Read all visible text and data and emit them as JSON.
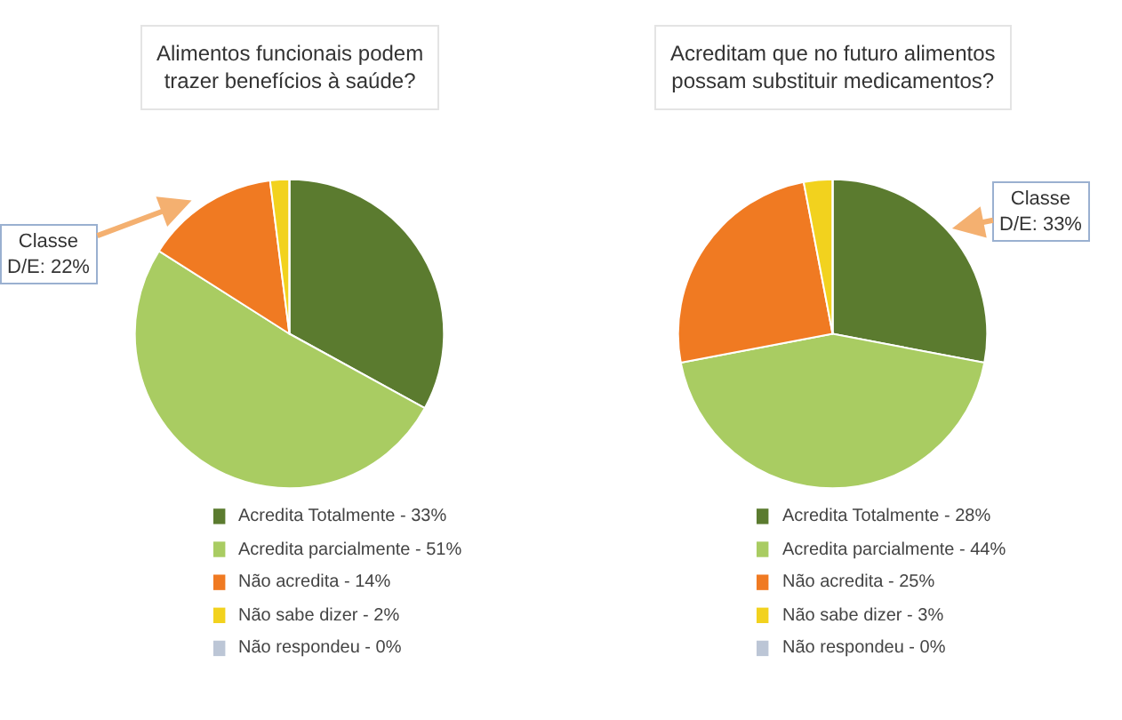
{
  "chart_data": [
    {
      "type": "pie",
      "title": "Alimentos funcionais podem\ntrazer benefícios à saúde?",
      "categories": [
        "Acredita Totalmente - 33%",
        "Acredita parcialmente - 51%",
        "Não acredita - 14%",
        "Não sabe dizer - 2%",
        "Não respondeu - 0%"
      ],
      "values": [
        33,
        51,
        14,
        2,
        0
      ],
      "colors": [
        "#5b7b2f",
        "#a9cc62",
        "#f07a22",
        "#f2d21e",
        "#bcc6d6"
      ],
      "legend": "bottom",
      "annotations": [
        "Classe\nD/E: 22%"
      ]
    },
    {
      "type": "pie",
      "title": "Acreditam que no futuro alimentos\npossam substituir medicamentos?",
      "categories": [
        "Acredita Totalmente - 28%",
        "Acredita parcialmente - 44%",
        "Não acredita - 25%",
        "Não sabe dizer - 3%",
        "Não respondeu - 0%"
      ],
      "values": [
        28,
        44,
        25,
        3,
        0
      ],
      "colors": [
        "#5b7b2f",
        "#a9cc62",
        "#f07a22",
        "#f2d21e",
        "#bcc6d6"
      ],
      "legend": "bottom",
      "annotations": [
        "Classe\nD/E: 33%"
      ]
    }
  ]
}
